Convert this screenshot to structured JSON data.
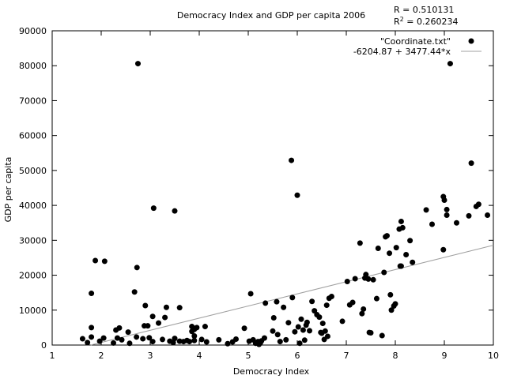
{
  "chart_data": {
    "type": "scatter",
    "title": "Democracy Index and GDP per capita 2006",
    "xlabel": "Democracy Index",
    "ylabel": "GDP per capita",
    "xlim": [
      1,
      10
    ],
    "ylim": [
      0,
      90000
    ],
    "xticks": [
      1,
      2,
      3,
      4,
      5,
      6,
      7,
      8,
      9,
      10
    ],
    "yticks": [
      0,
      10000,
      20000,
      30000,
      40000,
      50000,
      60000,
      70000,
      80000,
      90000
    ],
    "grid": false,
    "legend_position": "top-right",
    "stats": {
      "r_line": "R = 0.510131",
      "r2_prefix": "R",
      "r2_sup": "2",
      "r2_rest": " = 0.260234"
    },
    "series": [
      {
        "name": "\"Coordinate.txt\"",
        "marker": "filled-circle",
        "color": "#000000",
        "points": [
          [
            1.62,
            1800
          ],
          [
            1.72,
            700
          ],
          [
            1.8,
            5000
          ],
          [
            1.8,
            2300
          ],
          [
            1.8,
            14800
          ],
          [
            1.88,
            24200
          ],
          [
            1.97,
            1100
          ],
          [
            2.05,
            2000
          ],
          [
            2.07,
            24000
          ],
          [
            2.25,
            600
          ],
          [
            2.3,
            4300
          ],
          [
            2.33,
            2000
          ],
          [
            2.37,
            4900
          ],
          [
            2.42,
            1500
          ],
          [
            2.55,
            3700
          ],
          [
            2.58,
            500
          ],
          [
            2.68,
            15200
          ],
          [
            2.73,
            22200
          ],
          [
            2.75,
            80600
          ],
          [
            2.72,
            2300
          ],
          [
            2.85,
            1800
          ],
          [
            2.9,
            11300
          ],
          [
            2.88,
            5500
          ],
          [
            2.95,
            5500
          ],
          [
            2.98,
            2100
          ],
          [
            3.05,
            8200
          ],
          [
            3.07,
            39200
          ],
          [
            3.05,
            1000
          ],
          [
            3.17,
            6300
          ],
          [
            3.25,
            1600
          ],
          [
            3.3,
            7900
          ],
          [
            3.33,
            10800
          ],
          [
            3.4,
            1100
          ],
          [
            3.47,
            700
          ],
          [
            3.5,
            38400
          ],
          [
            3.5,
            1900
          ],
          [
            3.6,
            1100
          ],
          [
            3.6,
            10700
          ],
          [
            3.68,
            1000
          ],
          [
            3.75,
            1300
          ],
          [
            3.8,
            1000
          ],
          [
            3.85,
            3900
          ],
          [
            3.85,
            5300
          ],
          [
            3.9,
            4500
          ],
          [
            3.9,
            2600
          ],
          [
            3.9,
            1300
          ],
          [
            3.95,
            5000
          ],
          [
            4.05,
            1600
          ],
          [
            4.12,
            5300
          ],
          [
            4.15,
            900
          ],
          [
            4.4,
            1500
          ],
          [
            4.58,
            400
          ],
          [
            4.68,
            900
          ],
          [
            4.75,
            1700
          ],
          [
            4.92,
            4800
          ],
          [
            5.02,
            1100
          ],
          [
            5.05,
            14700
          ],
          [
            5.1,
            1500
          ],
          [
            5.15,
            500
          ],
          [
            5.2,
            1000
          ],
          [
            5.22,
            200
          ],
          [
            5.25,
            700
          ],
          [
            5.27,
            1200
          ],
          [
            5.33,
            2000
          ],
          [
            5.35,
            12000
          ],
          [
            5.5,
            4000
          ],
          [
            5.52,
            7800
          ],
          [
            5.58,
            12400
          ],
          [
            5.6,
            3000
          ],
          [
            5.65,
            1000
          ],
          [
            5.72,
            10800
          ],
          [
            5.77,
            1500
          ],
          [
            5.82,
            6400
          ],
          [
            5.88,
            52900
          ],
          [
            5.9,
            13600
          ],
          [
            5.95,
            3800
          ],
          [
            6.0,
            42900
          ],
          [
            6.02,
            5200
          ],
          [
            6.05,
            500
          ],
          [
            6.08,
            7400
          ],
          [
            6.12,
            4300
          ],
          [
            6.15,
            1400
          ],
          [
            6.18,
            5700
          ],
          [
            6.2,
            6500
          ],
          [
            6.25,
            4100
          ],
          [
            6.3,
            12500
          ],
          [
            6.35,
            9800
          ],
          [
            6.4,
            8700
          ],
          [
            6.45,
            8000
          ],
          [
            6.48,
            3600
          ],
          [
            6.5,
            3400
          ],
          [
            6.52,
            6200
          ],
          [
            6.55,
            1600
          ],
          [
            6.57,
            4000
          ],
          [
            6.6,
            11400
          ],
          [
            6.62,
            2500
          ],
          [
            6.65,
            13400
          ],
          [
            6.7,
            13900
          ],
          [
            6.92,
            6800
          ],
          [
            7.02,
            18200
          ],
          [
            7.07,
            11500
          ],
          [
            7.13,
            12200
          ],
          [
            7.18,
            19000
          ],
          [
            7.28,
            29200
          ],
          [
            7.32,
            9000
          ],
          [
            7.35,
            10300
          ],
          [
            7.38,
            19200
          ],
          [
            7.4,
            20200
          ],
          [
            7.45,
            18900
          ],
          [
            7.47,
            3600
          ],
          [
            7.5,
            3500
          ],
          [
            7.55,
            18700
          ],
          [
            7.62,
            13300
          ],
          [
            7.65,
            27700
          ],
          [
            7.73,
            2700
          ],
          [
            7.77,
            20800
          ],
          [
            7.8,
            31000
          ],
          [
            7.83,
            31300
          ],
          [
            7.88,
            26300
          ],
          [
            7.9,
            14400
          ],
          [
            7.92,
            10000
          ],
          [
            7.97,
            11200
          ],
          [
            8.0,
            11800
          ],
          [
            8.02,
            27900
          ],
          [
            8.08,
            33200
          ],
          [
            8.1,
            22600
          ],
          [
            8.12,
            22600
          ],
          [
            8.12,
            35400
          ],
          [
            8.15,
            33600
          ],
          [
            8.22,
            25900
          ],
          [
            8.3,
            29900
          ],
          [
            8.35,
            23700
          ],
          [
            8.63,
            38700
          ],
          [
            8.75,
            34600
          ],
          [
            8.98,
            42500
          ],
          [
            8.98,
            27300
          ],
          [
            9.0,
            41500
          ],
          [
            9.05,
            37200
          ],
          [
            9.05,
            38800
          ],
          [
            9.12,
            80600
          ],
          [
            9.25,
            35000
          ],
          [
            9.5,
            37000
          ],
          [
            9.55,
            52100
          ],
          [
            9.65,
            39700
          ],
          [
            9.7,
            40300
          ],
          [
            9.88,
            37200
          ]
        ]
      },
      {
        "name": "-6204.87 + 3477.44*x",
        "type": "line",
        "color": "#a0a0a0",
        "intercept": -6204.87,
        "slope": 3477.44
      }
    ]
  }
}
